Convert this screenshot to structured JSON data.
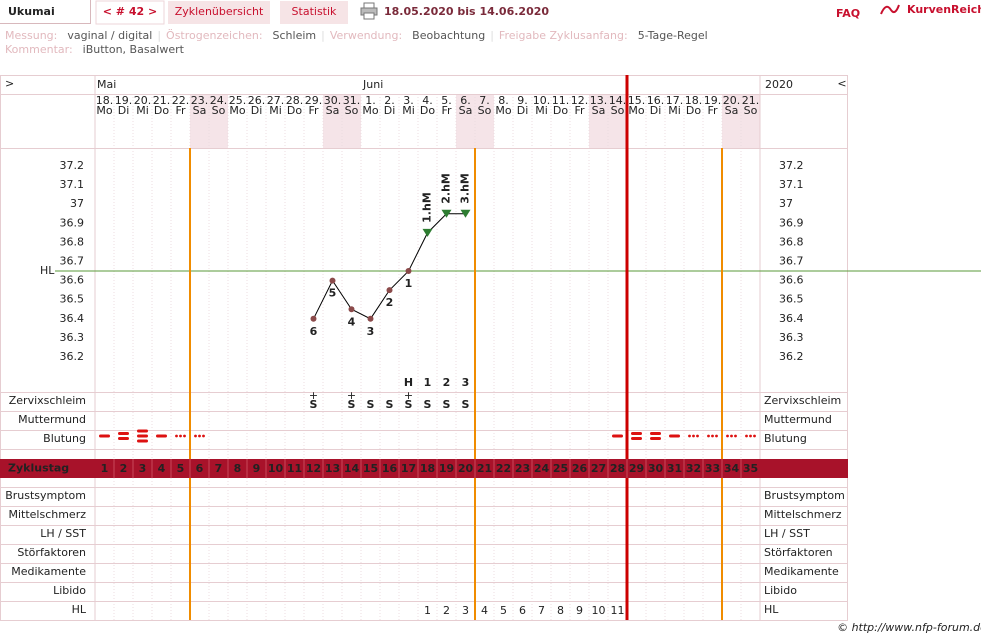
{
  "header": {
    "user": "Ukumai",
    "cycle": "< # 42 >",
    "tabs": [
      "Zyklenübersicht",
      "Statistik"
    ],
    "period": "18.05.2020 bis 14.06.2020",
    "faq": "FAQ",
    "brand": "KurvenReich"
  },
  "info": [
    {
      "label": "Messung:",
      "value": "vaginal / digital"
    },
    {
      "label": "Östrogenzeichen:",
      "value": "Schleim"
    },
    {
      "label": "Verwendung:",
      "value": "Beobachtung"
    },
    {
      "label": "Freigabe Zyklusanfang:",
      "value": "5-Tage-Regel"
    }
  ],
  "separator": "|",
  "comment": {
    "label": "Kommentar:",
    "value": "iButton, Basalwert"
  },
  "footer": "© http://www.nfp-forum.de",
  "chart_data": {
    "type": "line",
    "nav_left": ">",
    "nav_right": "<",
    "year": "2020",
    "months": [
      "Mai",
      null,
      null,
      null,
      null,
      null,
      null,
      null,
      null,
      null,
      null,
      null,
      null,
      null,
      "Juni",
      null,
      null,
      null,
      null,
      null,
      null,
      null,
      null,
      null,
      null,
      null,
      null,
      null,
      null,
      null,
      null,
      null,
      null,
      null,
      null
    ],
    "categories": [
      "18.",
      "19.",
      "20.",
      "21.",
      "22.",
      "23.",
      "24.",
      "25.",
      "26.",
      "27.",
      "28.",
      "29.",
      "30.",
      "31.",
      "1.",
      "2.",
      "3.",
      "4.",
      "5.",
      "6.",
      "7.",
      "8.",
      "9.",
      "10.",
      "11.",
      "12.",
      "13.",
      "14.",
      "15.",
      "16.",
      "17.",
      "18.",
      "19.",
      "20.",
      "21."
    ],
    "weekdays": [
      "Mo",
      "Di",
      "Mi",
      "Do",
      "Fr",
      "Sa",
      "So",
      "Mo",
      "Di",
      "Mi",
      "Do",
      "Fr",
      "Sa",
      "So",
      "Mo",
      "Di",
      "Mi",
      "Do",
      "Fr",
      "Sa",
      "So",
      "Mo",
      "Di",
      "Mi",
      "Do",
      "Fr",
      "Sa",
      "So",
      "Mo",
      "Di",
      "Mi",
      "Do",
      "Fr",
      "Sa",
      "So"
    ],
    "values": [
      null,
      null,
      null,
      null,
      null,
      null,
      null,
      null,
      null,
      null,
      null,
      36.4,
      36.6,
      36.45,
      36.4,
      36.55,
      36.65,
      36.85,
      36.95,
      36.95,
      null,
      null,
      null,
      null,
      null,
      null,
      null,
      null,
      null,
      null,
      null,
      null,
      null,
      null,
      null
    ],
    "point_labels": [
      null,
      null,
      null,
      null,
      null,
      null,
      null,
      null,
      null,
      null,
      null,
      "6",
      "5",
      "4",
      "3",
      "2",
      "1",
      null,
      null,
      null,
      null,
      null,
      null,
      null,
      null,
      null,
      null,
      null,
      null,
      null,
      null,
      null,
      null,
      null,
      null
    ],
    "hm_labels": [
      null,
      null,
      null,
      null,
      null,
      null,
      null,
      null,
      null,
      null,
      null,
      null,
      null,
      null,
      null,
      null,
      null,
      "1.hM",
      "2.hM",
      "3.hM",
      null,
      null,
      null,
      null,
      null,
      null,
      null,
      null,
      null,
      null,
      null,
      null,
      null,
      null,
      null
    ],
    "color": "#000000",
    "point_color": "#8b4a4a",
    "hm_color": "#2e7d32",
    "ylim": [
      36.0,
      37.3
    ],
    "yticks": [
      36.2,
      36.3,
      36.4,
      36.5,
      36.6,
      36.7,
      36.8,
      36.9,
      37,
      37.1,
      37.2
    ],
    "coverline": {
      "label": "HL",
      "value": 36.65,
      "color": "#5a9a3a"
    },
    "orange_lines_after_day": [
      5,
      20,
      33
    ],
    "red_line_after_day": 28,
    "top_rows": [
      {
        "label": "Zervixschleim",
        "color": "#f08c00"
      },
      {
        "label": "Muttermund",
        "color": "#4a5fc8"
      },
      {
        "label": "Blutung",
        "color": "#000000"
      }
    ],
    "peak": [
      null,
      null,
      null,
      null,
      null,
      null,
      null,
      null,
      null,
      null,
      null,
      null,
      null,
      null,
      null,
      null,
      "H",
      "1",
      "2",
      "3",
      null,
      null,
      null,
      null,
      null,
      null,
      null,
      null,
      null,
      null,
      null,
      null,
      null,
      null,
      null
    ],
    "mucus": [
      null,
      null,
      null,
      null,
      null,
      null,
      null,
      null,
      null,
      null,
      null,
      "S",
      null,
      "S",
      "S",
      "S",
      "S",
      "S",
      "S",
      "S",
      null,
      null,
      null,
      null,
      null,
      null,
      null,
      null,
      null,
      null,
      null,
      null,
      null,
      null,
      null
    ],
    "mucus_plus": [
      null,
      null,
      null,
      null,
      null,
      null,
      null,
      null,
      null,
      null,
      null,
      "+",
      null,
      "+",
      null,
      null,
      "+",
      null,
      null,
      null,
      null,
      null,
      null,
      null,
      null,
      null,
      null,
      null,
      null,
      null,
      null,
      null,
      null,
      null,
      null
    ],
    "bleeding": [
      2,
      3,
      4,
      2,
      1,
      1,
      null,
      null,
      null,
      null,
      null,
      null,
      null,
      null,
      null,
      null,
      null,
      null,
      null,
      null,
      null,
      null,
      null,
      null,
      null,
      null,
      null,
      2,
      3,
      3,
      2,
      1,
      1,
      1,
      1
    ],
    "cycle_label": "Zyklustag",
    "cycle_days": [
      1,
      2,
      3,
      4,
      5,
      6,
      7,
      8,
      9,
      10,
      11,
      12,
      13,
      14,
      15,
      16,
      17,
      18,
      19,
      20,
      21,
      22,
      23,
      24,
      25,
      26,
      27,
      28,
      29,
      30,
      31,
      32,
      33,
      34,
      35
    ],
    "cycle_day_highlight": [
      false,
      false,
      false,
      false,
      false,
      true,
      true,
      true,
      true,
      true,
      true,
      true,
      true,
      true,
      true,
      true,
      true,
      true,
      true,
      true,
      false,
      false,
      false,
      false,
      false,
      false,
      false,
      false,
      false,
      false,
      false,
      false,
      false,
      true,
      true
    ],
    "bottom_rows": [
      "Brustsymptom",
      "Mittelschmerz",
      "LH / SST",
      "Störfaktoren",
      "Medikamente",
      "Libido",
      "HL"
    ],
    "hl_row": [
      null,
      null,
      null,
      null,
      null,
      null,
      null,
      null,
      null,
      null,
      null,
      null,
      null,
      null,
      null,
      null,
      null,
      1,
      2,
      3,
      4,
      5,
      6,
      7,
      8,
      9,
      10,
      11,
      null,
      null,
      null,
      null,
      null,
      null,
      null
    ]
  }
}
